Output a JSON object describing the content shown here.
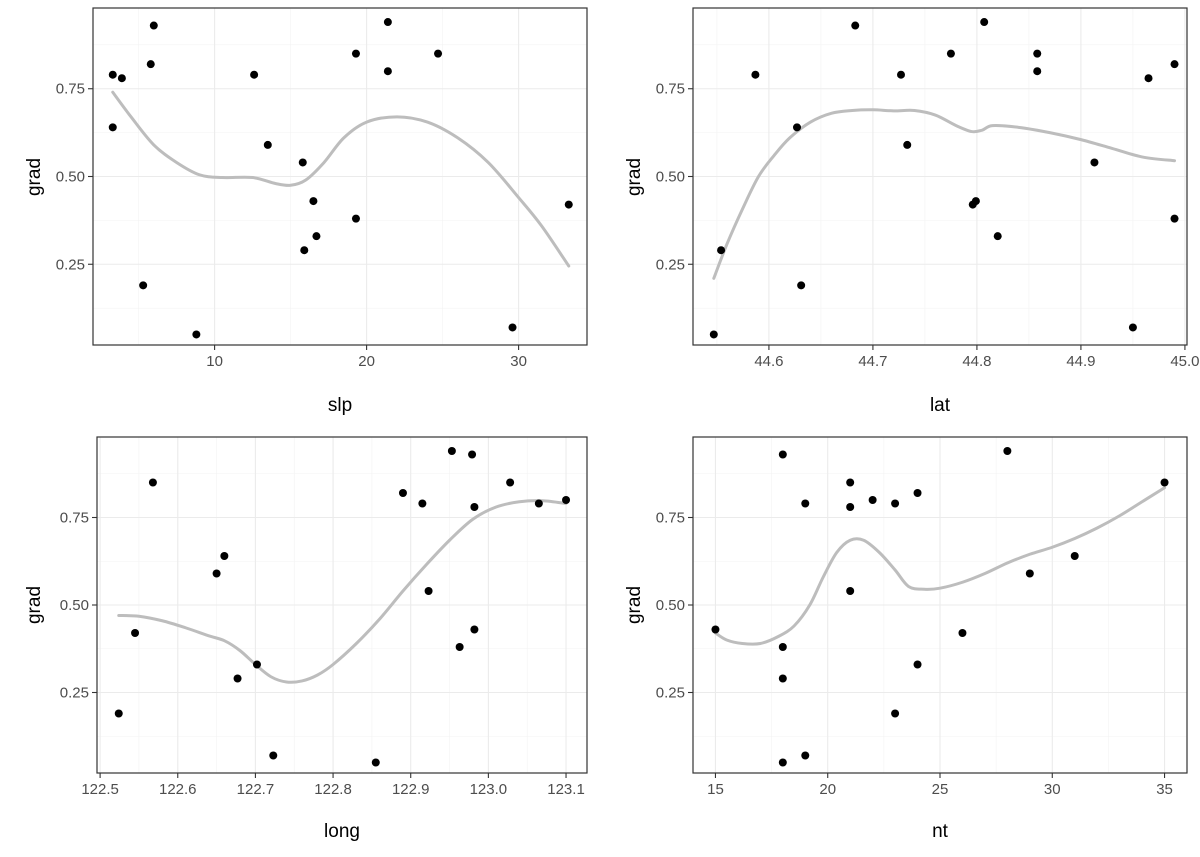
{
  "colors": {
    "point": "#000000",
    "smooth": "#bdbdbd",
    "grid": "#ebebeb",
    "border": "#333333"
  },
  "chart_data": [
    {
      "type": "scatter",
      "xlabel": "slp",
      "ylabel": "grad",
      "xlim": [
        2.0,
        34.5
      ],
      "ylim": [
        0.02,
        0.98
      ],
      "xticks": [
        10,
        20,
        30
      ],
      "xtick_labels": [
        "10",
        "20",
        "30"
      ],
      "yticks": [
        0.25,
        0.5,
        0.75
      ],
      "ytick_labels": [
        "0.25",
        "0.50",
        "0.75"
      ],
      "grid": true,
      "points": [
        {
          "x": 3.3,
          "y": 0.79
        },
        {
          "x": 3.3,
          "y": 0.64
        },
        {
          "x": 3.9,
          "y": 0.78
        },
        {
          "x": 5.3,
          "y": 0.19
        },
        {
          "x": 5.8,
          "y": 0.82
        },
        {
          "x": 6.0,
          "y": 0.93
        },
        {
          "x": 8.8,
          "y": 0.05
        },
        {
          "x": 12.6,
          "y": 0.79
        },
        {
          "x": 13.5,
          "y": 0.59
        },
        {
          "x": 15.8,
          "y": 0.54
        },
        {
          "x": 15.9,
          "y": 0.29
        },
        {
          "x": 16.5,
          "y": 0.43
        },
        {
          "x": 16.7,
          "y": 0.33
        },
        {
          "x": 19.3,
          "y": 0.38
        },
        {
          "x": 19.3,
          "y": 0.85
        },
        {
          "x": 21.4,
          "y": 0.94
        },
        {
          "x": 21.4,
          "y": 0.8
        },
        {
          "x": 24.7,
          "y": 0.85
        },
        {
          "x": 29.6,
          "y": 0.07
        },
        {
          "x": 33.3,
          "y": 0.42
        }
      ],
      "smooth": [
        {
          "x": 3.3,
          "y": 0.74
        },
        {
          "x": 4.5,
          "y": 0.67
        },
        {
          "x": 6,
          "y": 0.59
        },
        {
          "x": 7.5,
          "y": 0.54
        },
        {
          "x": 9,
          "y": 0.505
        },
        {
          "x": 10.5,
          "y": 0.497
        },
        {
          "x": 12.5,
          "y": 0.497
        },
        {
          "x": 14,
          "y": 0.48
        },
        {
          "x": 15,
          "y": 0.475
        },
        {
          "x": 16,
          "y": 0.49
        },
        {
          "x": 17.2,
          "y": 0.54
        },
        {
          "x": 18.5,
          "y": 0.61
        },
        {
          "x": 20,
          "y": 0.655
        },
        {
          "x": 22,
          "y": 0.67
        },
        {
          "x": 24,
          "y": 0.655
        },
        {
          "x": 26,
          "y": 0.61
        },
        {
          "x": 28,
          "y": 0.54
        },
        {
          "x": 30,
          "y": 0.44
        },
        {
          "x": 31.5,
          "y": 0.36
        },
        {
          "x": 33.3,
          "y": 0.245
        }
      ]
    },
    {
      "type": "scatter",
      "xlabel": "lat",
      "ylabel": "grad",
      "xlim": [
        44.527,
        45.002
      ],
      "ylim": [
        0.02,
        0.98
      ],
      "xticks": [
        44.6,
        44.7,
        44.8,
        44.9,
        45.0
      ],
      "xtick_labels": [
        "44.6",
        "44.7",
        "44.8",
        "44.9",
        "45.0"
      ],
      "yticks": [
        0.25,
        0.5,
        0.75
      ],
      "ytick_labels": [
        "0.25",
        "0.50",
        "0.75"
      ],
      "grid": true,
      "points": [
        {
          "x": 44.547,
          "y": 0.05
        },
        {
          "x": 44.554,
          "y": 0.29
        },
        {
          "x": 44.587,
          "y": 0.79
        },
        {
          "x": 44.627,
          "y": 0.64
        },
        {
          "x": 44.631,
          "y": 0.19
        },
        {
          "x": 44.683,
          "y": 0.93
        },
        {
          "x": 44.727,
          "y": 0.79
        },
        {
          "x": 44.733,
          "y": 0.59
        },
        {
          "x": 44.775,
          "y": 0.85
        },
        {
          "x": 44.796,
          "y": 0.42
        },
        {
          "x": 44.799,
          "y": 0.43
        },
        {
          "x": 44.807,
          "y": 0.94
        },
        {
          "x": 44.82,
          "y": 0.33
        },
        {
          "x": 44.858,
          "y": 0.85
        },
        {
          "x": 44.858,
          "y": 0.8
        },
        {
          "x": 44.913,
          "y": 0.54
        },
        {
          "x": 44.95,
          "y": 0.07
        },
        {
          "x": 44.965,
          "y": 0.78
        },
        {
          "x": 44.99,
          "y": 0.82
        },
        {
          "x": 44.99,
          "y": 0.38
        }
      ],
      "smooth": [
        {
          "x": 44.547,
          "y": 0.21
        },
        {
          "x": 44.56,
          "y": 0.31
        },
        {
          "x": 44.575,
          "y": 0.41
        },
        {
          "x": 44.59,
          "y": 0.5
        },
        {
          "x": 44.605,
          "y": 0.56
        },
        {
          "x": 44.62,
          "y": 0.61
        },
        {
          "x": 44.64,
          "y": 0.655
        },
        {
          "x": 44.66,
          "y": 0.68
        },
        {
          "x": 44.68,
          "y": 0.688
        },
        {
          "x": 44.7,
          "y": 0.69
        },
        {
          "x": 44.72,
          "y": 0.687
        },
        {
          "x": 44.74,
          "y": 0.688
        },
        {
          "x": 44.76,
          "y": 0.675
        },
        {
          "x": 44.78,
          "y": 0.645
        },
        {
          "x": 44.795,
          "y": 0.628
        },
        {
          "x": 44.805,
          "y": 0.632
        },
        {
          "x": 44.815,
          "y": 0.645
        },
        {
          "x": 44.84,
          "y": 0.64
        },
        {
          "x": 44.87,
          "y": 0.625
        },
        {
          "x": 44.9,
          "y": 0.605
        },
        {
          "x": 44.93,
          "y": 0.58
        },
        {
          "x": 44.96,
          "y": 0.555
        },
        {
          "x": 44.99,
          "y": 0.545
        }
      ]
    },
    {
      "type": "scatter",
      "xlabel": "long",
      "ylabel": "grad",
      "xlim": [
        122.496,
        123.127
      ],
      "ylim": [
        0.02,
        0.98
      ],
      "xticks": [
        122.5,
        122.6,
        122.7,
        122.8,
        122.9,
        123.0,
        123.1
      ],
      "xtick_labels": [
        "122.5",
        "122.6",
        "122.7",
        "122.8",
        "122.9",
        "123.0",
        "123.1"
      ],
      "yticks": [
        0.25,
        0.5,
        0.75
      ],
      "ytick_labels": [
        "0.25",
        "0.50",
        "0.75"
      ],
      "grid": true,
      "points": [
        {
          "x": 122.524,
          "y": 0.19
        },
        {
          "x": 122.545,
          "y": 0.42
        },
        {
          "x": 122.568,
          "y": 0.85
        },
        {
          "x": 122.65,
          "y": 0.59
        },
        {
          "x": 122.66,
          "y": 0.64
        },
        {
          "x": 122.677,
          "y": 0.29
        },
        {
          "x": 122.702,
          "y": 0.33
        },
        {
          "x": 122.723,
          "y": 0.07
        },
        {
          "x": 122.855,
          "y": 0.05
        },
        {
          "x": 122.89,
          "y": 0.82
        },
        {
          "x": 122.915,
          "y": 0.79
        },
        {
          "x": 122.923,
          "y": 0.54
        },
        {
          "x": 122.953,
          "y": 0.94
        },
        {
          "x": 122.963,
          "y": 0.38
        },
        {
          "x": 122.979,
          "y": 0.93
        },
        {
          "x": 122.982,
          "y": 0.78
        },
        {
          "x": 122.982,
          "y": 0.43
        },
        {
          "x": 123.028,
          "y": 0.85
        },
        {
          "x": 123.065,
          "y": 0.79
        },
        {
          "x": 123.1,
          "y": 0.8
        }
      ],
      "smooth": [
        {
          "x": 122.524,
          "y": 0.47
        },
        {
          "x": 122.55,
          "y": 0.468
        },
        {
          "x": 122.58,
          "y": 0.455
        },
        {
          "x": 122.61,
          "y": 0.435
        },
        {
          "x": 122.64,
          "y": 0.412
        },
        {
          "x": 122.66,
          "y": 0.398
        },
        {
          "x": 122.68,
          "y": 0.37
        },
        {
          "x": 122.7,
          "y": 0.33
        },
        {
          "x": 122.72,
          "y": 0.295
        },
        {
          "x": 122.74,
          "y": 0.28
        },
        {
          "x": 122.76,
          "y": 0.283
        },
        {
          "x": 122.78,
          "y": 0.3
        },
        {
          "x": 122.8,
          "y": 0.33
        },
        {
          "x": 122.83,
          "y": 0.39
        },
        {
          "x": 122.86,
          "y": 0.46
        },
        {
          "x": 122.89,
          "y": 0.54
        },
        {
          "x": 122.92,
          "y": 0.615
        },
        {
          "x": 122.95,
          "y": 0.685
        },
        {
          "x": 122.98,
          "y": 0.745
        },
        {
          "x": 123.01,
          "y": 0.78
        },
        {
          "x": 123.04,
          "y": 0.795
        },
        {
          "x": 123.07,
          "y": 0.798
        },
        {
          "x": 123.1,
          "y": 0.79
        }
      ]
    },
    {
      "type": "scatter",
      "xlabel": "nt",
      "ylabel": "grad",
      "xlim": [
        14.0,
        36.0
      ],
      "ylim": [
        0.02,
        0.98
      ],
      "xticks": [
        15,
        20,
        25,
        30,
        35
      ],
      "xtick_labels": [
        "15",
        "20",
        "25",
        "30",
        "35"
      ],
      "yticks": [
        0.25,
        0.5,
        0.75
      ],
      "ytick_labels": [
        "0.25",
        "0.50",
        "0.75"
      ],
      "grid": true,
      "points": [
        {
          "x": 15,
          "y": 0.43
        },
        {
          "x": 18,
          "y": 0.93
        },
        {
          "x": 18,
          "y": 0.38
        },
        {
          "x": 18,
          "y": 0.29
        },
        {
          "x": 18,
          "y": 0.05
        },
        {
          "x": 19,
          "y": 0.79
        },
        {
          "x": 19,
          "y": 0.07
        },
        {
          "x": 21,
          "y": 0.85
        },
        {
          "x": 21,
          "y": 0.78
        },
        {
          "x": 21,
          "y": 0.54
        },
        {
          "x": 22,
          "y": 0.8
        },
        {
          "x": 23,
          "y": 0.79
        },
        {
          "x": 23,
          "y": 0.19
        },
        {
          "x": 24,
          "y": 0.82
        },
        {
          "x": 24,
          "y": 0.33
        },
        {
          "x": 26,
          "y": 0.42
        },
        {
          "x": 28,
          "y": 0.94
        },
        {
          "x": 29,
          "y": 0.59
        },
        {
          "x": 31,
          "y": 0.64
        },
        {
          "x": 35,
          "y": 0.85
        }
      ],
      "smooth": [
        {
          "x": 15,
          "y": 0.42
        },
        {
          "x": 15.5,
          "y": 0.4
        },
        {
          "x": 16.2,
          "y": 0.39
        },
        {
          "x": 17,
          "y": 0.39
        },
        {
          "x": 17.8,
          "y": 0.41
        },
        {
          "x": 18.5,
          "y": 0.44
        },
        {
          "x": 19.2,
          "y": 0.5
        },
        {
          "x": 19.8,
          "y": 0.58
        },
        {
          "x": 20.4,
          "y": 0.65
        },
        {
          "x": 21,
          "y": 0.685
        },
        {
          "x": 21.6,
          "y": 0.685
        },
        {
          "x": 22.3,
          "y": 0.65
        },
        {
          "x": 23,
          "y": 0.6
        },
        {
          "x": 23.6,
          "y": 0.553
        },
        {
          "x": 24.3,
          "y": 0.545
        },
        {
          "x": 25,
          "y": 0.548
        },
        {
          "x": 26,
          "y": 0.565
        },
        {
          "x": 27,
          "y": 0.59
        },
        {
          "x": 28,
          "y": 0.62
        },
        {
          "x": 29,
          "y": 0.645
        },
        {
          "x": 30,
          "y": 0.665
        },
        {
          "x": 31,
          "y": 0.69
        },
        {
          "x": 32,
          "y": 0.72
        },
        {
          "x": 33,
          "y": 0.755
        },
        {
          "x": 34,
          "y": 0.795
        },
        {
          "x": 35,
          "y": 0.835
        }
      ]
    }
  ]
}
